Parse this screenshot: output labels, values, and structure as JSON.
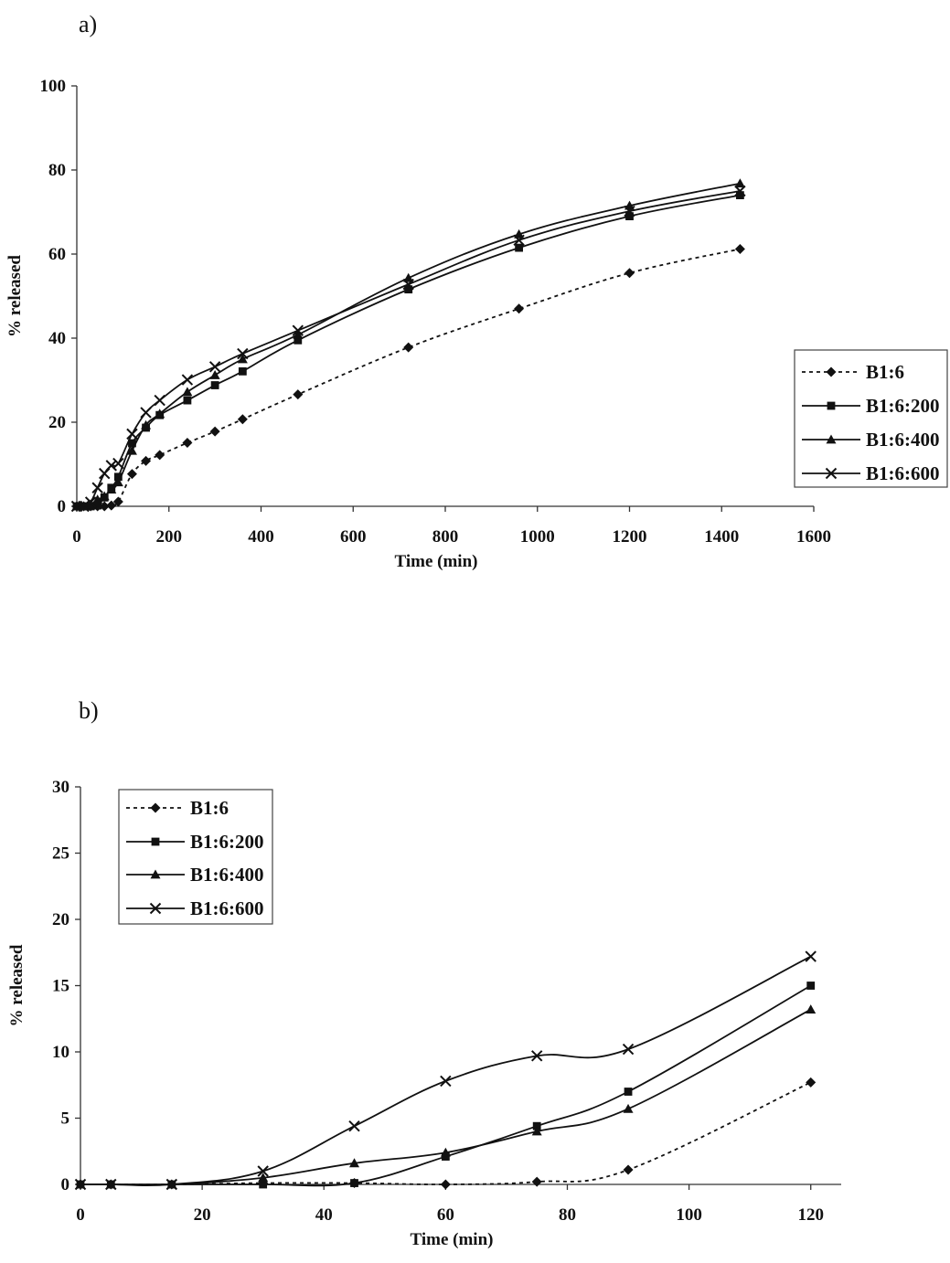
{
  "panels": {
    "a": "a)",
    "b": "b)"
  },
  "chart_data": [
    {
      "type": "line",
      "panel": "a)",
      "xlabel": "Time (min)",
      "ylabel": "% released",
      "xlim": [
        0,
        1600
      ],
      "ylim": [
        0,
        100
      ],
      "xticks": [
        0,
        200,
        400,
        600,
        800,
        1000,
        1200,
        1400,
        1600
      ],
      "yticks": [
        0,
        20,
        40,
        60,
        80,
        100
      ],
      "grid": false,
      "legend": "right",
      "series": [
        {
          "name": "B1:6",
          "marker": "diamond",
          "dash": true,
          "x": [
            0,
            15,
            30,
            45,
            60,
            75,
            90,
            120,
            150,
            180,
            240,
            300,
            360,
            480,
            720,
            960,
            1200,
            1440
          ],
          "y": [
            0,
            0,
            0,
            0,
            0,
            0.2,
            1.1,
            7.7,
            10.8,
            12.2,
            15.1,
            17.8,
            20.7,
            26.6,
            37.8,
            47.0,
            55.5,
            61.2
          ]
        },
        {
          "name": "B1:6:200",
          "marker": "square",
          "dash": false,
          "x": [
            0,
            15,
            30,
            45,
            60,
            75,
            90,
            120,
            150,
            180,
            240,
            300,
            360,
            480,
            720,
            960,
            1200,
            1440
          ],
          "y": [
            0,
            0,
            0,
            0.2,
            2.1,
            4.4,
            7.0,
            15.0,
            18.7,
            21.7,
            25.2,
            28.8,
            32.1,
            39.5,
            51.6,
            61.5,
            69.0,
            74.0
          ]
        },
        {
          "name": "B1:6:400",
          "marker": "triangle",
          "dash": false,
          "x": [
            0,
            15,
            30,
            45,
            60,
            75,
            90,
            120,
            150,
            180,
            240,
            300,
            360,
            480,
            720,
            960,
            1200,
            1440
          ],
          "y": [
            0,
            0,
            0.5,
            1.6,
            2.4,
            4.0,
            5.7,
            13.2,
            19.3,
            22.0,
            27.2,
            31.2,
            35.0,
            40.8,
            54.3,
            64.7,
            71.5,
            76.8
          ]
        },
        {
          "name": "B1:6:600",
          "marker": "x",
          "dash": false,
          "x": [
            0,
            15,
            30,
            45,
            60,
            75,
            90,
            120,
            150,
            180,
            240,
            300,
            360,
            480,
            720,
            960,
            1200,
            1440
          ],
          "y": [
            0,
            0,
            1.0,
            4.4,
            7.8,
            9.7,
            10.2,
            17.2,
            22.3,
            25.2,
            30.1,
            33.2,
            36.3,
            41.8,
            52.8,
            63.3,
            70.2,
            75.0
          ]
        }
      ]
    },
    {
      "type": "line",
      "panel": "b)",
      "xlabel": "Time (min)",
      "ylabel": "% released",
      "xlim": [
        0,
        125
      ],
      "ylim": [
        0,
        30
      ],
      "xticks": [
        0,
        20,
        40,
        60,
        80,
        100,
        120
      ],
      "yticks": [
        0,
        5,
        10,
        15,
        20,
        25,
        30
      ],
      "grid": false,
      "legend": "top-left",
      "series": [
        {
          "name": "B1:6",
          "marker": "diamond",
          "dash": true,
          "x": [
            0,
            5,
            15,
            30,
            45,
            60,
            75,
            90,
            120
          ],
          "y": [
            0,
            0,
            0,
            0.1,
            0.1,
            0,
            0.2,
            1.1,
            7.7
          ]
        },
        {
          "name": "B1:6:200",
          "marker": "square",
          "dash": false,
          "x": [
            0,
            5,
            15,
            30,
            45,
            60,
            75,
            90,
            120
          ],
          "y": [
            0,
            0,
            0,
            0,
            0.1,
            2.1,
            4.4,
            7.0,
            15.0
          ]
        },
        {
          "name": "B1:6:400",
          "marker": "triangle",
          "dash": false,
          "x": [
            0,
            5,
            15,
            30,
            45,
            60,
            75,
            90,
            120
          ],
          "y": [
            0,
            0,
            0,
            0.5,
            1.6,
            2.4,
            4.0,
            5.7,
            13.2
          ]
        },
        {
          "name": "B1:6:600",
          "marker": "x",
          "dash": false,
          "x": [
            0,
            5,
            15,
            30,
            45,
            60,
            75,
            90,
            120
          ],
          "y": [
            0,
            0,
            0,
            1.0,
            4.4,
            7.8,
            9.7,
            10.2,
            17.2
          ]
        }
      ]
    }
  ]
}
